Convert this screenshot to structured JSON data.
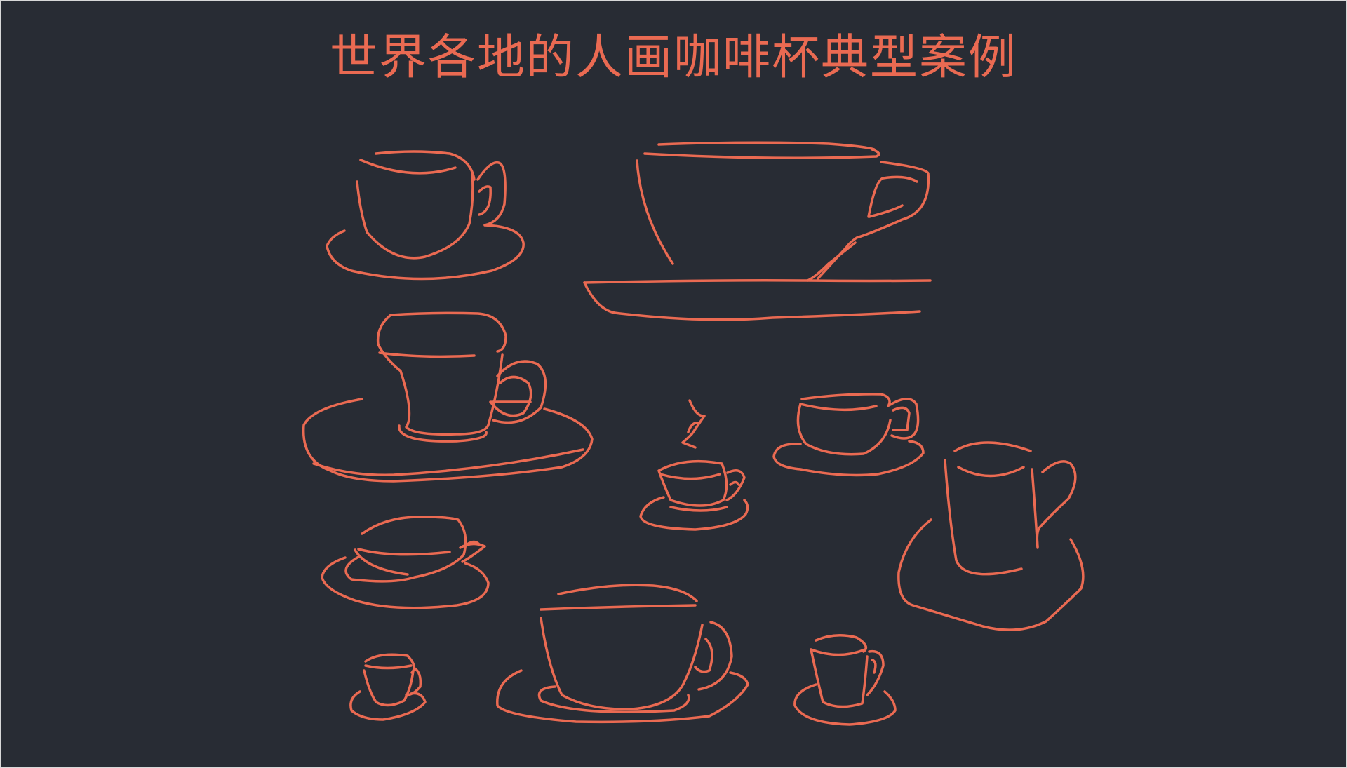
{
  "page": {
    "title": "世界各地的人画咖啡杯典型案例",
    "accent_color": "#ea6a52",
    "background_color": "#282c34"
  },
  "illustrations": [
    {
      "name": "cup-1",
      "icon": "coffee-cup-icon"
    },
    {
      "name": "cup-2",
      "icon": "coffee-cup-icon"
    },
    {
      "name": "cup-3",
      "icon": "coffee-cup-icon"
    },
    {
      "name": "cup-4",
      "icon": "coffee-cup-steam-icon"
    },
    {
      "name": "cup-5",
      "icon": "coffee-cup-icon"
    },
    {
      "name": "cup-6",
      "icon": "coffee-mug-icon"
    },
    {
      "name": "cup-7",
      "icon": "coffee-cup-icon"
    },
    {
      "name": "cup-8",
      "icon": "coffee-cup-icon"
    },
    {
      "name": "cup-9",
      "icon": "coffee-cup-icon"
    },
    {
      "name": "cup-10",
      "icon": "coffee-cup-icon"
    }
  ]
}
